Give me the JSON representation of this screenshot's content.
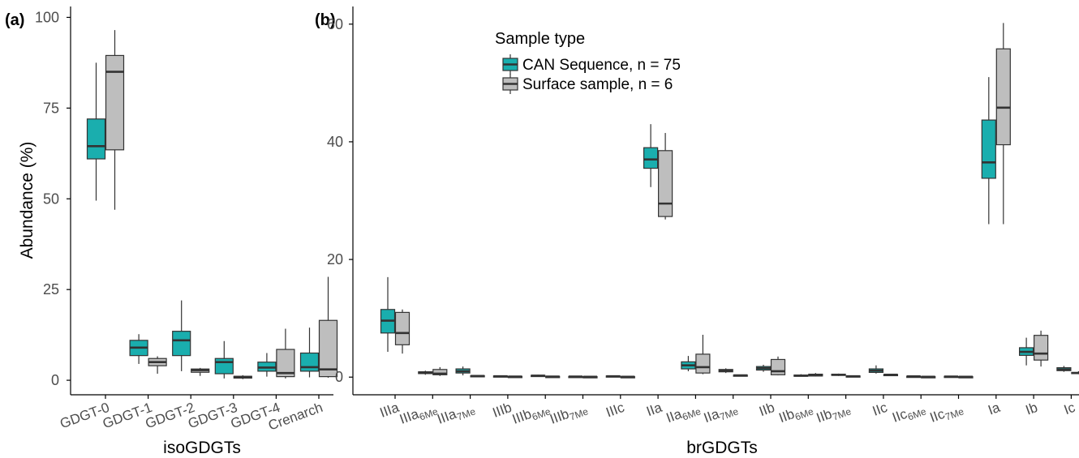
{
  "colors": {
    "can": "#1aaeae",
    "surface": "#bebebe",
    "stroke": "#333333",
    "axis": "#000000",
    "tick_text": "#4d4d4d"
  },
  "chart_data": [
    {
      "panel": "(a)",
      "type": "box",
      "xlabel": "isoGDGTs",
      "ylabel": "Abundance (%)",
      "ylim": [
        -4,
        103
      ],
      "yticks": [
        0,
        25,
        50,
        75,
        100
      ],
      "grid": false,
      "categories": [
        "GDGT-0",
        "GDGT-1",
        "GDGT-2",
        "GDGT-3",
        "GDGT-4",
        "Crenarch"
      ],
      "series": [
        {
          "name": "CAN Sequence, n = 75",
          "color_key": "can",
          "boxes": [
            {
              "min": 49.5,
              "q1": 61.0,
              "median": 64.5,
              "q3": 72.0,
              "max": 87.5
            },
            {
              "min": 4.5,
              "q1": 6.8,
              "median": 9.0,
              "q3": 11.0,
              "max": 12.7
            },
            {
              "min": 2.5,
              "q1": 6.8,
              "median": 11.0,
              "q3": 13.5,
              "max": 22.0
            },
            {
              "min": 0.5,
              "q1": 1.8,
              "median": 5.0,
              "q3": 6.0,
              "max": 10.8
            },
            {
              "min": 1.0,
              "q1": 2.5,
              "median": 3.5,
              "q3": 5.0,
              "max": 7.5
            },
            {
              "min": 0.8,
              "q1": 2.5,
              "median": 3.6,
              "q3": 7.5,
              "max": 14.5
            }
          ]
        },
        {
          "name": "Surface sample, n = 6",
          "color_key": "surface",
          "boxes": [
            {
              "min": 47.0,
              "q1": 63.5,
              "median": 85.0,
              "q3": 89.5,
              "max": 96.5
            },
            {
              "min": 1.8,
              "q1": 4.0,
              "median": 5.0,
              "q3": 6.0,
              "max": 6.6
            },
            {
              "min": 1.2,
              "q1": 2.2,
              "median": 2.8,
              "q3": 3.1,
              "max": 3.4
            },
            {
              "min": 0.3,
              "q1": 0.6,
              "median": 0.9,
              "q3": 1.1,
              "max": 1.4
            },
            {
              "min": 0.5,
              "q1": 1.0,
              "median": 2.0,
              "q3": 8.5,
              "max": 14.2
            },
            {
              "min": 0.7,
              "q1": 1.0,
              "median": 3.0,
              "q3": 16.5,
              "max": 28.5
            }
          ]
        }
      ]
    },
    {
      "panel": "(b)",
      "type": "box",
      "xlabel": "brGDGTs",
      "ylabel": "",
      "ylim": [
        -3,
        63
      ],
      "yticks": [
        0,
        20,
        40,
        60
      ],
      "grid": false,
      "categories": [
        {
          "base": "IIIa",
          "sub": ""
        },
        {
          "base": "IIIa",
          "sub": "6Me"
        },
        {
          "base": "IIIa",
          "sub": "7Me"
        },
        {
          "base": "IIIb",
          "sub": ""
        },
        {
          "base": "IIIb",
          "sub": "6Me"
        },
        {
          "base": "IIIb",
          "sub": "7Me"
        },
        {
          "base": "IIIc",
          "sub": ""
        },
        {
          "base": "IIa",
          "sub": ""
        },
        {
          "base": "IIa",
          "sub": "6Me"
        },
        {
          "base": "IIa",
          "sub": "7Me"
        },
        {
          "base": "IIb",
          "sub": ""
        },
        {
          "base": "IIb",
          "sub": "6Me"
        },
        {
          "base": "IIb",
          "sub": "7Me"
        },
        {
          "base": "IIc",
          "sub": ""
        },
        {
          "base": "IIc",
          "sub": "6Me"
        },
        {
          "base": "IIc",
          "sub": "7Me"
        },
        {
          "base": "Ia",
          "sub": ""
        },
        {
          "base": "Ib",
          "sub": ""
        },
        {
          "base": "Ic",
          "sub": ""
        }
      ],
      "series": [
        {
          "name": "CAN Sequence, n = 75",
          "color_key": "can",
          "boxes": [
            {
              "min": 4.3,
              "q1": 7.5,
              "median": 9.6,
              "q3": 11.5,
              "max": 17.0
            },
            {
              "min": 0.4,
              "q1": 0.6,
              "median": 0.8,
              "q3": 0.9,
              "max": 1.1
            },
            {
              "min": 0.3,
              "q1": 0.7,
              "median": 1.0,
              "q3": 1.4,
              "max": 1.8
            },
            {
              "min": 0.05,
              "q1": 0.1,
              "median": 0.15,
              "q3": 0.2,
              "max": 0.3
            },
            {
              "min": 0.1,
              "q1": 0.15,
              "median": 0.25,
              "q3": 0.3,
              "max": 0.4
            },
            {
              "min": 0.02,
              "q1": 0.05,
              "median": 0.1,
              "q3": 0.12,
              "max": 0.2
            },
            {
              "min": 0.05,
              "q1": 0.1,
              "median": 0.15,
              "q3": 0.2,
              "max": 0.3
            },
            {
              "min": 32.3,
              "q1": 35.5,
              "median": 37.0,
              "q3": 39.0,
              "max": 43.0
            },
            {
              "min": 1.0,
              "q1": 1.4,
              "median": 2.0,
              "q3": 2.6,
              "max": 3.6
            },
            {
              "min": 0.7,
              "q1": 0.9,
              "median": 1.1,
              "q3": 1.3,
              "max": 1.5
            },
            {
              "min": 0.9,
              "q1": 1.2,
              "median": 1.5,
              "q3": 1.8,
              "max": 2.1
            },
            {
              "min": 0.15,
              "q1": 0.2,
              "median": 0.25,
              "q3": 0.35,
              "max": 0.5
            },
            {
              "min": 0.2,
              "q1": 0.3,
              "median": 0.4,
              "q3": 0.5,
              "max": 0.6
            },
            {
              "min": 0.6,
              "q1": 0.8,
              "median": 1.1,
              "q3": 1.4,
              "max": 2.0
            },
            {
              "min": 0.05,
              "q1": 0.08,
              "median": 0.12,
              "q3": 0.15,
              "max": 0.2
            },
            {
              "min": 0.05,
              "q1": 0.08,
              "median": 0.1,
              "q3": 0.14,
              "max": 0.2
            },
            {
              "min": 26.0,
              "q1": 33.8,
              "median": 36.5,
              "q3": 43.7,
              "max": 51.0
            },
            {
              "min": 2.0,
              "q1": 3.7,
              "median": 4.3,
              "q3": 5.0,
              "max": 6.7
            },
            {
              "min": 0.9,
              "q1": 1.1,
              "median": 1.3,
              "q3": 1.6,
              "max": 1.9
            }
          ]
        },
        {
          "name": "Surface sample, n = 6",
          "color_key": "surface",
          "boxes": [
            {
              "min": 4.0,
              "q1": 5.5,
              "median": 7.5,
              "q3": 11.0,
              "max": 11.5
            },
            {
              "min": 0.2,
              "q1": 0.4,
              "median": 0.6,
              "q3": 1.3,
              "max": 1.7
            },
            {
              "min": 0.1,
              "q1": 0.15,
              "median": 0.2,
              "q3": 0.25,
              "max": 0.3
            },
            {
              "min": 0.05,
              "q1": 0.08,
              "median": 0.1,
              "q3": 0.12,
              "max": 0.15
            },
            {
              "min": 0.05,
              "q1": 0.08,
              "median": 0.1,
              "q3": 0.12,
              "max": 0.15
            },
            {
              "min": 0.02,
              "q1": 0.04,
              "median": 0.06,
              "q3": 0.08,
              "max": 0.1
            },
            {
              "min": 0.02,
              "q1": 0.04,
              "median": 0.06,
              "q3": 0.08,
              "max": 0.1
            },
            {
              "min": 26.8,
              "q1": 27.3,
              "median": 29.5,
              "q3": 38.5,
              "max": 41.5
            },
            {
              "min": 0.5,
              "q1": 0.7,
              "median": 1.7,
              "q3": 3.9,
              "max": 7.2
            },
            {
              "min": 0.2,
              "q1": 0.25,
              "median": 0.3,
              "q3": 0.35,
              "max": 0.4
            },
            {
              "min": 0.3,
              "q1": 0.4,
              "median": 1.0,
              "q3": 3.0,
              "max": 3.5
            },
            {
              "min": 0.1,
              "q1": 0.2,
              "median": 0.3,
              "q3": 0.5,
              "max": 0.7
            },
            {
              "min": 0.05,
              "q1": 0.1,
              "median": 0.15,
              "q3": 0.2,
              "max": 0.25
            },
            {
              "min": 0.2,
              "q1": 0.3,
              "median": 0.4,
              "q3": 0.45,
              "max": 0.5
            },
            {
              "min": 0.02,
              "q1": 0.04,
              "median": 0.06,
              "q3": 0.08,
              "max": 0.1
            },
            {
              "min": 0.02,
              "q1": 0.04,
              "median": 0.06,
              "q3": 0.08,
              "max": 0.1
            },
            {
              "min": 26.0,
              "q1": 39.5,
              "median": 45.8,
              "q3": 55.8,
              "max": 60.2
            },
            {
              "min": 1.8,
              "q1": 2.9,
              "median": 4.0,
              "q3": 7.1,
              "max": 7.9
            },
            {
              "min": 0.5,
              "q1": 0.6,
              "median": 0.7,
              "q3": 0.8,
              "max": 1.0
            }
          ]
        }
      ]
    }
  ],
  "legend": {
    "title": "Sample type",
    "placement": "top-center of panel (b)",
    "items": [
      "CAN Sequence, n = 75",
      "Surface sample, n = 6"
    ]
  }
}
